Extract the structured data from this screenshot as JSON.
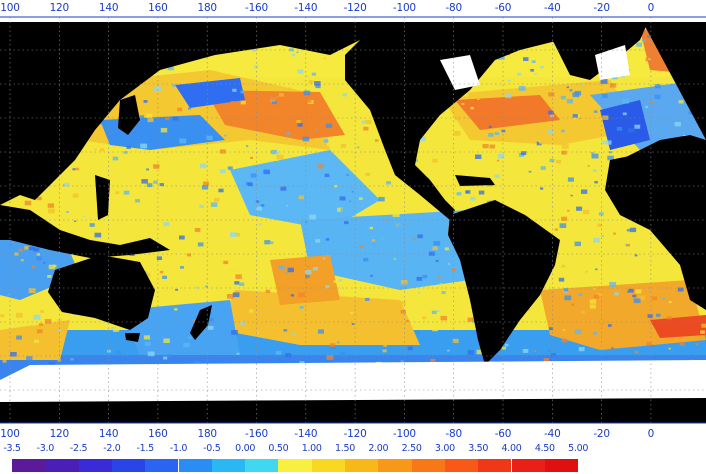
{
  "map": {
    "type": "sea-surface-temperature-anomaly",
    "projection": "equirectangular",
    "center_longitude": 180,
    "land_color": "#000000",
    "missing_color": "#ffffff",
    "gridlines": "dotted",
    "top_axis": [
      "100",
      "120",
      "140",
      "160",
      "180",
      "-160",
      "-140",
      "-120",
      "-100",
      "-80",
      "-60",
      "-40",
      "-20",
      "0"
    ],
    "bottom_axis": [
      "100",
      "120",
      "140",
      "160",
      "180",
      "-160",
      "-140",
      "-120",
      "-100",
      "-80",
      "-60",
      "-40",
      "-20",
      "0"
    ]
  },
  "legend": {
    "labels": [
      "-3.5",
      "-3.0",
      "-2.5",
      "-2.0",
      "-1.5",
      "-1.0",
      "-0.5",
      "0.00",
      "0.50",
      "1.00",
      "1.50",
      "2.00",
      "2.50",
      "3.00",
      "3.50",
      "4.00",
      "4.50",
      "5.00"
    ],
    "colors": [
      "#5a1a9a",
      "#4a1fb8",
      "#3a2bd8",
      "#2a44e8",
      "#2a64f0",
      "#2a8cf4",
      "#2ab8f4",
      "#40d8f0",
      "#f8f040",
      "#f8d820",
      "#f8b818",
      "#f89818",
      "#f87818",
      "#f85818",
      "#f03818",
      "#e82018",
      "#e01010",
      "#f80010"
    ]
  }
}
